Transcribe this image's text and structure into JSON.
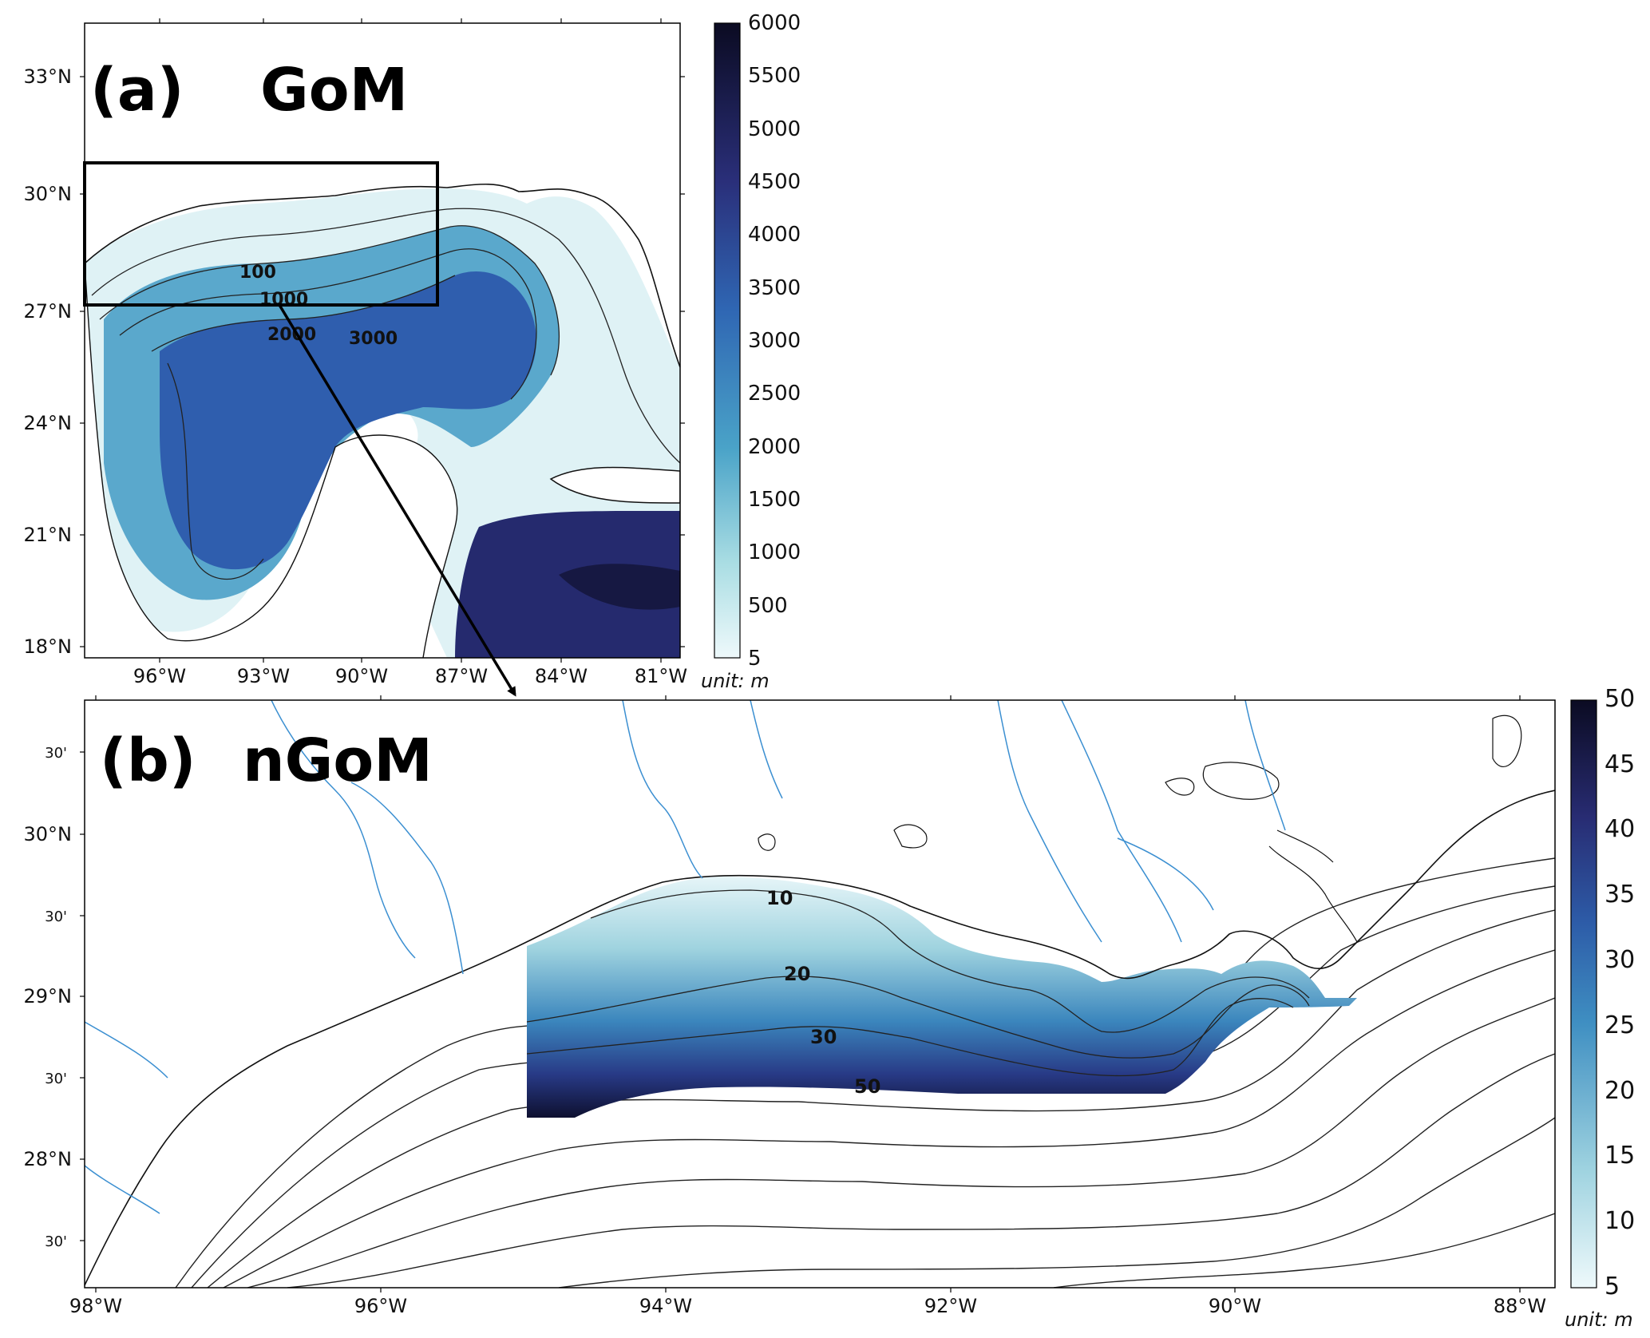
{
  "panel_a": {
    "title_letter": "(a)",
    "title_name": "GoM",
    "lat_ticks": [
      "18°N",
      "21°N",
      "24°N",
      "27°N",
      "30°N",
      "33°N"
    ],
    "lon_ticks": [
      "96°W",
      "93°W",
      "90°W",
      "87°W",
      "84°W",
      "81°W"
    ],
    "contour_labels": [
      "100",
      "1000",
      "2000",
      "3000"
    ],
    "colorbar": {
      "ticks": [
        "6000",
        "5500",
        "5000",
        "4500",
        "4000",
        "3500",
        "3000",
        "2500",
        "2000",
        "1500",
        "1000",
        "500",
        "5"
      ],
      "unit": "unit: m"
    }
  },
  "panel_b": {
    "title_letter": "(b)",
    "title_name": "nGoM",
    "lat_ticks": [
      "30'",
      "30°N",
      "30'",
      "29°N",
      "30'",
      "28°N",
      "30'"
    ],
    "lon_ticks": [
      "98°W",
      "96°W",
      "94°W",
      "92°W",
      "90°W",
      "88°W"
    ],
    "contour_labels": [
      "10",
      "20",
      "30",
      "50"
    ],
    "colorbar": {
      "ticks": [
        "50",
        "45",
        "40",
        "35",
        "30",
        "25",
        "20",
        "15",
        "10",
        "5"
      ],
      "unit": "unit: m"
    }
  },
  "colors": {
    "shallow": "#eaf7f9",
    "mid": "#3d8fbf",
    "deep": "#2b4fa2",
    "deepest": "#0d0f2a",
    "river": "#3b8fd1",
    "coast": "#111111"
  }
}
